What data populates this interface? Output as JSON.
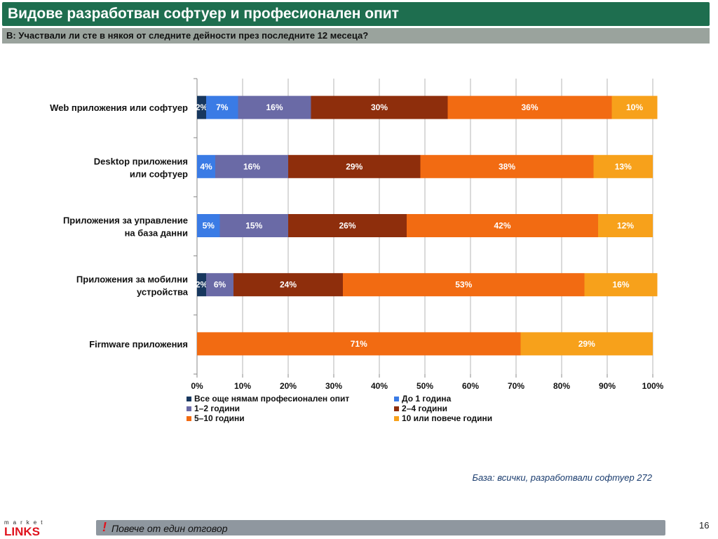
{
  "header": {
    "title": "Видове разработван софтуер и професионален опит",
    "question": "В: Участвали ли сте в някоя от следните дейности през последните 12 месеца?"
  },
  "chart_data": {
    "type": "bar",
    "orientation": "horizontal",
    "stacked": true,
    "percent_axis": true,
    "categories": [
      "Web приложения или софтуер",
      "Desktop приложения или софтуер",
      "Приложения за управление на база данни",
      "Приложения за мобилни устройства",
      "Firmware приложения"
    ],
    "series": [
      {
        "name": "Все още нямам професионален опит",
        "color": "#17375e",
        "values": [
          2,
          0,
          0,
          2,
          0
        ],
        "labels": [
          "2%",
          "",
          "",
          "2%",
          ""
        ]
      },
      {
        "name": "До 1 година",
        "color": "#3a7be5",
        "values": [
          7,
          4,
          5,
          0,
          0
        ],
        "labels": [
          "7%",
          "4%",
          "5%",
          "",
          ""
        ]
      },
      {
        "name": "1–2 години",
        "color": "#6a6aa6",
        "values": [
          16,
          16,
          15,
          6,
          0
        ],
        "labels": [
          "16%",
          "16%",
          "15%",
          "6%",
          ""
        ]
      },
      {
        "name": "2–4 години",
        "color": "#8e2e0c",
        "values": [
          30,
          29,
          26,
          24,
          0
        ],
        "labels": [
          "30%",
          "29%",
          "26%",
          "24%",
          ""
        ]
      },
      {
        "name": "5–10 години",
        "color": "#f26b12",
        "values": [
          36,
          38,
          42,
          53,
          71
        ],
        "labels": [
          "36%",
          "38%",
          "42%",
          "53%",
          "71%"
        ]
      },
      {
        "name": "10 или повече години",
        "color": "#f7a11b",
        "values": [
          10,
          13,
          12,
          16,
          29
        ],
        "labels": [
          "10%",
          "13%",
          "12%",
          "16%",
          "29%"
        ]
      }
    ],
    "xlim": [
      0,
      100
    ],
    "x_ticks": [
      "0%",
      "10%",
      "20%",
      "30%",
      "40%",
      "50%",
      "60%",
      "70%",
      "80%",
      "90%",
      "100%"
    ],
    "grid": "vertical",
    "legend": "bottom"
  },
  "footer": {
    "base_note": "База: всички, разработвали софтуер 272",
    "exclamation": "!",
    "multi_answer_note": "Повече от един отговор",
    "page_number": "16",
    "logo_top": "market",
    "logo_main": "LINKS"
  }
}
